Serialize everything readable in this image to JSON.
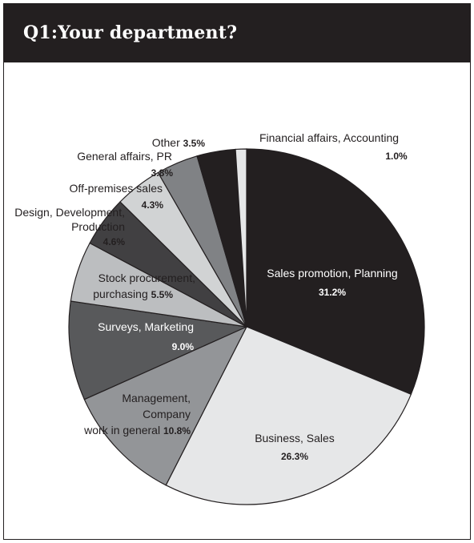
{
  "title": "Q1:Your department?",
  "chart_data": {
    "type": "pie",
    "title": "Q1:Your department?",
    "start": "12 o'clock",
    "direction": "clockwise",
    "slices": [
      {
        "label_lines": [
          "Sales promotion, Planning"
        ],
        "value": 31.2,
        "value_text": "31.2%",
        "color": "#231f20",
        "text_color": "#ffffff"
      },
      {
        "label_lines": [
          "Business, Sales"
        ],
        "value": 26.3,
        "value_text": "26.3%",
        "color": "#e6e7e8",
        "text_color": "#231f20"
      },
      {
        "label_lines": [
          "Management,",
          "Company",
          "work in general"
        ],
        "value": 10.8,
        "value_text": "10.8%",
        "color": "#939598",
        "text_color": "#231f20"
      },
      {
        "label_lines": [
          "Surveys, Marketing"
        ],
        "value": 9.0,
        "value_text": "9.0%",
        "color": "#58595b",
        "text_color": "#ffffff"
      },
      {
        "label_lines": [
          "Stock procurement,",
          "purchasing"
        ],
        "value": 5.5,
        "value_text": "5.5%",
        "color": "#bcbec0",
        "text_color": "#231f20"
      },
      {
        "label_lines": [
          "Design, Development,",
          "Production"
        ],
        "value": 4.6,
        "value_text": "4.6%",
        "color": "#414042",
        "text_color": "#231f20"
      },
      {
        "label_lines": [
          "Off-premises sales"
        ],
        "value": 4.3,
        "value_text": "4.3%",
        "color": "#d1d3d4",
        "text_color": "#231f20"
      },
      {
        "label_lines": [
          "General affairs, PR"
        ],
        "value": 3.8,
        "value_text": "3.8%",
        "color": "#808285",
        "text_color": "#231f20"
      },
      {
        "label_lines": [
          "Other"
        ],
        "value": 3.5,
        "value_text": "3.5%",
        "color": "#231f20",
        "text_color": "#231f20"
      },
      {
        "label_lines": [
          "Financial affairs, Accounting"
        ],
        "value": 1.0,
        "value_text": "1.0%",
        "color": "#e6e7e8",
        "text_color": "#231f20"
      }
    ]
  }
}
